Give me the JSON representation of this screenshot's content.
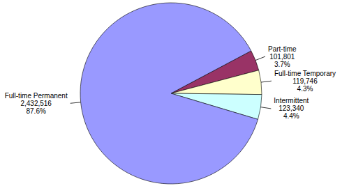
{
  "chart_data": {
    "type": "pie",
    "categories": [
      "Part-time",
      "Full-time Temporary",
      "Intermittent",
      "Full-time Permanent"
    ],
    "values": [
      101801,
      119746,
      123340,
      2432516
    ],
    "value_labels": [
      "101,801",
      "119,746",
      "123,340",
      "2,432,516"
    ],
    "percentages": [
      3.7,
      4.3,
      4.4,
      87.6
    ],
    "percentage_labels": [
      "3.7%",
      "4.3%",
      "4.4%",
      "87.6%"
    ],
    "colors": [
      "#993366",
      "#ffffcc",
      "#ccffff",
      "#9999ff"
    ],
    "data_labels": true
  }
}
